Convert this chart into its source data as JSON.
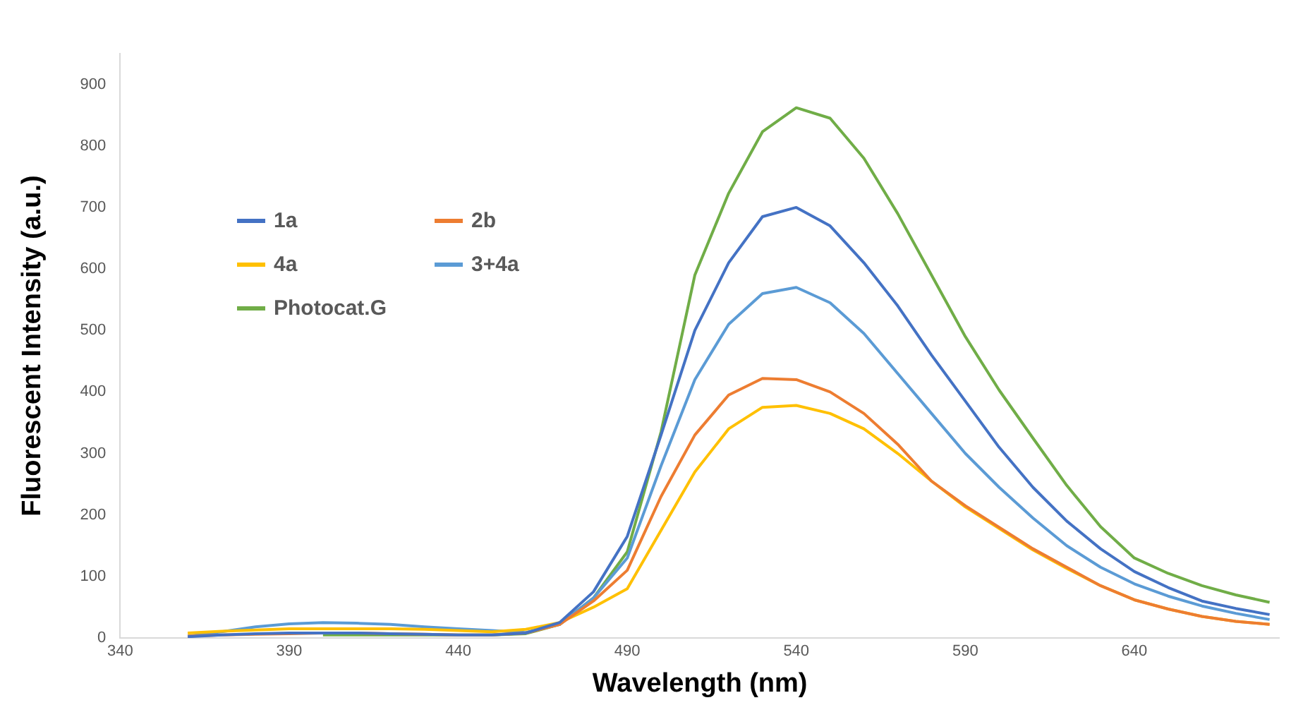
{
  "chart_data": {
    "type": "line",
    "xlabel": "Wavelength (nm)",
    "ylabel": "Fluorescent Intensity (a.u.)",
    "x": [
      360,
      370,
      380,
      390,
      400,
      410,
      420,
      430,
      440,
      450,
      460,
      470,
      480,
      490,
      500,
      510,
      520,
      530,
      540,
      550,
      560,
      570,
      580,
      590,
      600,
      610,
      620,
      630,
      640,
      650,
      660,
      670,
      680
    ],
    "xlim": [
      340,
      683
    ],
    "xticks": [
      340,
      390,
      440,
      490,
      540,
      590,
      640
    ],
    "ylim": [
      0,
      950
    ],
    "yticks": [
      0,
      100,
      200,
      300,
      400,
      500,
      600,
      700,
      800,
      900
    ],
    "grid": false,
    "legend": "top left",
    "marker": "none",
    "line_style": "solid",
    "series": [
      {
        "name": "1a",
        "color": "#4472c4",
        "values": [
          2,
          5,
          7,
          8,
          8,
          8,
          7,
          6,
          5,
          5,
          8,
          25,
          75,
          165,
          330,
          500,
          610,
          685,
          700,
          670,
          610,
          540,
          460,
          385,
          310,
          245,
          190,
          145,
          108,
          82,
          60,
          48,
          38
        ]
      },
      {
        "name": "2b",
        "color": "#ed7d31",
        "values": [
          3,
          5,
          6,
          7,
          8,
          8,
          7,
          6,
          5,
          5,
          8,
          22,
          60,
          110,
          230,
          330,
          395,
          422,
          420,
          400,
          365,
          315,
          255,
          215,
          180,
          145,
          115,
          85,
          62,
          47,
          35,
          27,
          22
        ]
      },
      {
        "name": "4a",
        "color": "#ffc000",
        "values": [
          8,
          11,
          13,
          15,
          15,
          15,
          15,
          14,
          12,
          10,
          14,
          25,
          50,
          80,
          175,
          270,
          340,
          375,
          378,
          365,
          340,
          300,
          255,
          213,
          178,
          143,
          113,
          85,
          62,
          47,
          35,
          27,
          22
        ]
      },
      {
        "name": "3+4a",
        "color": "#5b9bd5",
        "values": [
          3,
          10,
          18,
          23,
          25,
          24,
          22,
          18,
          15,
          12,
          9,
          22,
          65,
          130,
          280,
          420,
          510,
          560,
          570,
          545,
          495,
          430,
          365,
          300,
          245,
          195,
          150,
          115,
          88,
          68,
          52,
          40,
          30
        ]
      },
      {
        "name": "Photocat.G",
        "color": "#70ad47",
        "values": [
          null,
          null,
          null,
          null,
          5,
          5,
          5,
          5,
          5,
          5,
          7,
          22,
          65,
          140,
          335,
          590,
          723,
          823,
          862,
          845,
          780,
          690,
          590,
          490,
          403,
          325,
          248,
          181,
          130,
          105,
          85,
          70,
          58
        ]
      }
    ]
  }
}
